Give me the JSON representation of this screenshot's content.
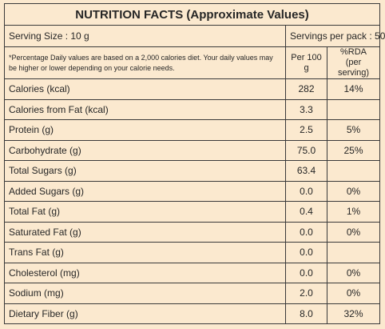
{
  "title": "NUTRITION FACTS (Approximate Values)",
  "serving_size": "Serving Size : 10 g",
  "servings_per_pack": "Servings per pack : 50",
  "note": "*Percentage Daily values are based on a 2,000 calories diet. Your daily values may be higher or lower depending on your calorie needs.",
  "per_100g_header": "Per 100 g",
  "rda_header": [
    "%RDA",
    "(per serving)"
  ],
  "rows": [
    [
      "Calories (kcal)",
      "282",
      "14%"
    ],
    [
      "Calories from Fat (kcal)",
      "3.3",
      null
    ],
    [
      "Protein (g)",
      "2.5",
      "5%"
    ],
    [
      "Carbohydrate (g)",
      "75.0",
      "25%"
    ],
    [
      "Total Sugars (g)",
      "63.4",
      null
    ],
    [
      "Added Sugars (g)",
      "0.0",
      "0%"
    ],
    [
      "Total Fat (g)",
      "0.4",
      "1%"
    ],
    [
      "Saturated Fat (g)",
      "0.0",
      "0%"
    ],
    [
      "Trans Fat (g)",
      "0.0",
      null
    ],
    [
      "Cholesterol (mg)",
      "0.0",
      "0%"
    ],
    [
      "Sodium (mg)",
      "2.0",
      "0%"
    ],
    [
      "Dietary Fiber (g)",
      "8.0",
      "32%"
    ]
  ]
}
